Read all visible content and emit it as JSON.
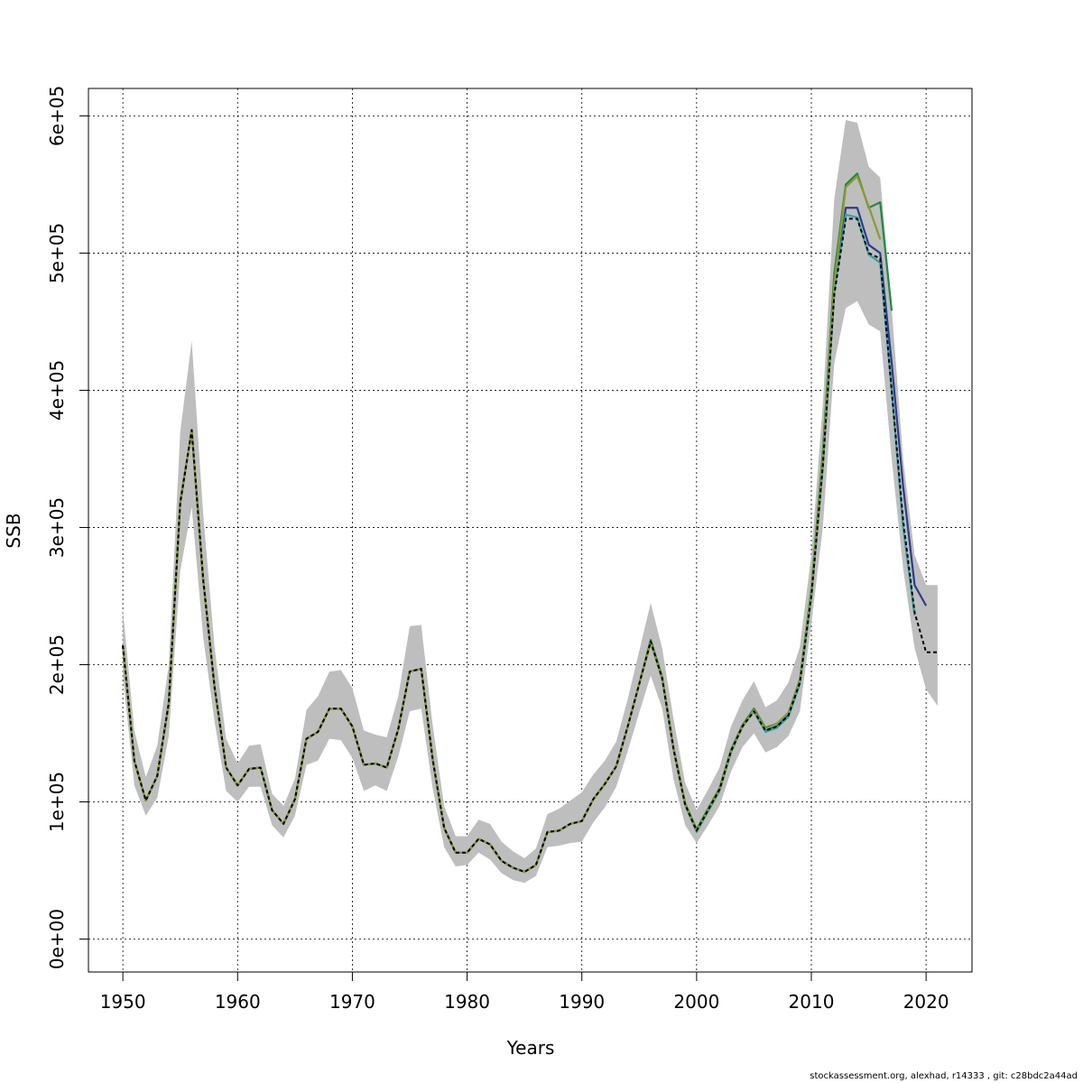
{
  "chart_data": {
    "type": "line",
    "title": "",
    "xlabel": "Years",
    "ylabel": "SSB",
    "xlim": [
      1947,
      2024
    ],
    "ylim": [
      -24000,
      620000
    ],
    "x_ticks": [
      1950,
      1960,
      1970,
      1980,
      1990,
      2000,
      2010,
      2020
    ],
    "x_tick_labels": [
      "1950",
      "1960",
      "1970",
      "1980",
      "1990",
      "2000",
      "2010",
      "2020"
    ],
    "y_ticks": [
      0,
      100000,
      200000,
      300000,
      400000,
      500000,
      600000
    ],
    "y_tick_labels": [
      "0e+00",
      "1e+05",
      "2e+05",
      "3e+05",
      "4e+05",
      "5e+05",
      "6e+05"
    ],
    "grid": true,
    "band": {
      "color": "#bebebe",
      "x": [
        1950,
        1951,
        1952,
        1953,
        1954,
        1955,
        1956,
        1957,
        1958,
        1959,
        1960,
        1961,
        1962,
        1963,
        1964,
        1965,
        1966,
        1967,
        1968,
        1969,
        1970,
        1971,
        1972,
        1973,
        1974,
        1975,
        1976,
        1977,
        1978,
        1979,
        1980,
        1981,
        1982,
        1983,
        1984,
        1985,
        1986,
        1987,
        1988,
        1989,
        1990,
        1991,
        1992,
        1993,
        1994,
        1995,
        1996,
        1997,
        1998,
        1999,
        2000,
        2001,
        2002,
        2003,
        2004,
        2005,
        2006,
        2007,
        2008,
        2009,
        2010,
        2011,
        2012,
        2013,
        2014,
        2015,
        2016,
        2017,
        2018,
        2019,
        2020,
        2021
      ],
      "lower": [
        192000,
        112000,
        90000,
        103000,
        148000,
        268000,
        315000,
        220000,
        158000,
        108000,
        100000,
        111000,
        111000,
        83000,
        74000,
        90000,
        127000,
        130000,
        146000,
        145000,
        132000,
        108000,
        112000,
        108000,
        133000,
        166000,
        168000,
        110000,
        67000,
        53000,
        54000,
        63000,
        58000,
        48000,
        43000,
        41000,
        46000,
        67000,
        68000,
        70000,
        71000,
        85000,
        96000,
        111000,
        137000,
        165000,
        192000,
        168000,
        116000,
        83000,
        70000,
        83000,
        97000,
        122000,
        140000,
        150000,
        136000,
        140000,
        148000,
        166000,
        230000,
        300000,
        420000,
        460000,
        465000,
        448000,
        443000,
        350000,
        270000,
        212000,
        182000,
        170000
      ],
      "upper": [
        240000,
        152000,
        118000,
        141000,
        200000,
        370000,
        436000,
        310000,
        212000,
        146000,
        128000,
        141000,
        142000,
        106000,
        97000,
        117000,
        167000,
        177000,
        195000,
        196000,
        183000,
        152000,
        149000,
        147000,
        177000,
        228000,
        229000,
        156000,
        97000,
        75000,
        75000,
        87000,
        84000,
        71000,
        64000,
        59000,
        66000,
        91000,
        95000,
        101000,
        107000,
        120000,
        130000,
        144000,
        175000,
        210000,
        245000,
        212000,
        160000,
        114000,
        94000,
        109000,
        125000,
        155000,
        174000,
        188000,
        169000,
        174000,
        187000,
        213000,
        280000,
        390000,
        540000,
        597000,
        595000,
        563000,
        555000,
        460000,
        350000,
        280000,
        258000,
        258000
      ]
    },
    "series": [
      {
        "color": "#000000",
        "dashed": true,
        "x": [
          1950,
          1951,
          1952,
          1953,
          1954,
          1955,
          1956,
          1957,
          1958,
          1959,
          1960,
          1961,
          1962,
          1963,
          1964,
          1965,
          1966,
          1967,
          1968,
          1969,
          1970,
          1971,
          1972,
          1973,
          1974,
          1975,
          1976,
          1977,
          1978,
          1979,
          1980,
          1981,
          1982,
          1983,
          1984,
          1985,
          1986,
          1987,
          1988,
          1989,
          1990,
          1991,
          1992,
          1993,
          1994,
          1995,
          1996,
          1997,
          1998,
          1999,
          2000,
          2001,
          2002,
          2003,
          2004,
          2005,
          2006,
          2007,
          2008,
          2009,
          2010,
          2011,
          2012,
          2013,
          2014,
          2015,
          2016,
          2017,
          2018,
          2019,
          2020,
          2021
        ],
        "values": [
          214000,
          130000,
          101000,
          119000,
          172000,
          318000,
          371000,
          262000,
          183000,
          125000,
          112000,
          124000,
          125000,
          94000,
          84000,
          102000,
          146000,
          151000,
          168000,
          168000,
          155000,
          127000,
          128000,
          125000,
          153000,
          195000,
          197000,
          131000,
          81000,
          63000,
          63000,
          73000,
          69000,
          57000,
          52000,
          49000,
          54000,
          78000,
          79000,
          84000,
          86000,
          102000,
          113000,
          126000,
          155000,
          186000,
          217000,
          190000,
          138000,
          98000,
          79000,
          94000,
          109000,
          137000,
          155000,
          166000,
          152000,
          155000,
          163000,
          187000,
          250000,
          345000,
          470000,
          525000,
          525000,
          500000,
          496000,
          400000,
          305000,
          238000,
          209000,
          209000
        ]
      },
      {
        "color": "#2b3d8c",
        "dashed": false,
        "x": [
          1950,
          1951,
          1952,
          1953,
          1954,
          1955,
          1956,
          1957,
          1958,
          1959,
          1960,
          1961,
          1962,
          1963,
          1964,
          1965,
          1966,
          1967,
          1968,
          1969,
          1970,
          1971,
          1972,
          1973,
          1974,
          1975,
          1976,
          1977,
          1978,
          1979,
          1980,
          1981,
          1982,
          1983,
          1984,
          1985,
          1986,
          1987,
          1988,
          1989,
          1990,
          1991,
          1992,
          1993,
          1994,
          1995,
          1996,
          1997,
          1998,
          1999,
          2000,
          2001,
          2002,
          2003,
          2004,
          2005,
          2006,
          2007,
          2008,
          2009,
          2010,
          2011,
          2012,
          2013,
          2014,
          2015,
          2016,
          2017,
          2018,
          2019,
          2020
        ],
        "values": [
          214000,
          130000,
          101000,
          119000,
          172000,
          318000,
          371000,
          262000,
          183000,
          125000,
          112000,
          124000,
          125000,
          94000,
          84000,
          102000,
          146000,
          151000,
          168000,
          168000,
          155000,
          127000,
          128000,
          125000,
          153000,
          195000,
          197000,
          131000,
          81000,
          63000,
          63000,
          73000,
          69000,
          57000,
          52000,
          49000,
          54000,
          78000,
          79000,
          84000,
          86000,
          102000,
          113000,
          126000,
          155000,
          186000,
          217000,
          190000,
          138000,
          98000,
          79000,
          94000,
          109000,
          137000,
          155000,
          166000,
          152000,
          155000,
          163000,
          187000,
          250000,
          345000,
          472000,
          533000,
          533000,
          506000,
          500000,
          420000,
          330000,
          258000,
          243000
        ]
      },
      {
        "color": "#2aa6a6",
        "dashed": false,
        "x": [
          1950,
          1951,
          1952,
          1953,
          1954,
          1955,
          1956,
          1957,
          1958,
          1959,
          1960,
          1961,
          1962,
          1963,
          1964,
          1965,
          1966,
          1967,
          1968,
          1969,
          1970,
          1971,
          1972,
          1973,
          1974,
          1975,
          1976,
          1977,
          1978,
          1979,
          1980,
          1981,
          1982,
          1983,
          1984,
          1985,
          1986,
          1987,
          1988,
          1989,
          1990,
          1991,
          1992,
          1993,
          1994,
          1995,
          1996,
          1997,
          1998,
          1999,
          2000,
          2001,
          2002,
          2003,
          2004,
          2005,
          2006,
          2007,
          2008,
          2009,
          2010,
          2011,
          2012,
          2013,
          2014,
          2015,
          2016,
          2017,
          2018,
          2019
        ],
        "values": [
          214000,
          130000,
          101000,
          119000,
          172000,
          318000,
          371000,
          262000,
          183000,
          125000,
          112000,
          124000,
          125000,
          94000,
          84000,
          102000,
          146000,
          151000,
          168000,
          168000,
          155000,
          127000,
          128000,
          125000,
          153000,
          195000,
          197000,
          131000,
          81000,
          63000,
          63000,
          73000,
          69000,
          57000,
          52000,
          49000,
          54000,
          78000,
          79000,
          84000,
          86000,
          102000,
          113000,
          126000,
          155000,
          186000,
          216000,
          190000,
          138000,
          98000,
          78000,
          93000,
          108000,
          136000,
          155000,
          166000,
          151000,
          154000,
          162000,
          186000,
          250000,
          345000,
          472000,
          528000,
          526000,
          499000,
          493000,
          400000,
          300000,
          236000
        ]
      },
      {
        "color": "#1e8c3c",
        "dashed": false,
        "x": [
          1950,
          1951,
          1952,
          1953,
          1954,
          1955,
          1956,
          1957,
          1958,
          1959,
          1960,
          1961,
          1962,
          1963,
          1964,
          1965,
          1966,
          1967,
          1968,
          1969,
          1970,
          1971,
          1972,
          1973,
          1974,
          1975,
          1976,
          1977,
          1978,
          1979,
          1980,
          1981,
          1982,
          1983,
          1984,
          1985,
          1986,
          1987,
          1988,
          1989,
          1990,
          1991,
          1992,
          1993,
          1994,
          1995,
          1996,
          1997,
          1998,
          1999,
          2000,
          2001,
          2002,
          2003,
          2004,
          2005,
          2006,
          2007,
          2008,
          2009,
          2010,
          2011,
          2012,
          2013,
          2014,
          2015,
          2016,
          2017
        ],
        "values": [
          214000,
          130000,
          101000,
          119000,
          172000,
          318000,
          371000,
          262000,
          183000,
          125000,
          112000,
          124000,
          125000,
          94000,
          84000,
          102000,
          146000,
          151000,
          168000,
          168000,
          155000,
          127000,
          128000,
          125000,
          153000,
          195000,
          197000,
          131000,
          81000,
          63000,
          63000,
          73000,
          69000,
          57000,
          52000,
          49000,
          54000,
          78000,
          79000,
          84000,
          86000,
          102000,
          113000,
          126000,
          155000,
          186000,
          218000,
          191000,
          139000,
          99000,
          80000,
          95000,
          110000,
          138000,
          156000,
          168000,
          154000,
          157000,
          165000,
          189000,
          255000,
          355000,
          485000,
          550000,
          558000,
          533000,
          537000,
          458000
        ]
      },
      {
        "color": "#8f9a2e",
        "dashed": false,
        "x": [
          1950,
          1951,
          1952,
          1953,
          1954,
          1955,
          1956,
          1957,
          1958,
          1959,
          1960,
          1961,
          1962,
          1963,
          1964,
          1965,
          1966,
          1967,
          1968,
          1969,
          1970,
          1971,
          1972,
          1973,
          1974,
          1975,
          1976,
          1977,
          1978,
          1979,
          1980,
          1981,
          1982,
          1983,
          1984,
          1985,
          1986,
          1987,
          1988,
          1989,
          1990,
          1991,
          1992,
          1993,
          1994,
          1995,
          1996,
          1997,
          1998,
          1999,
          2000,
          2001,
          2002,
          2003,
          2004,
          2005,
          2006,
          2007,
          2008,
          2009,
          2010,
          2011,
          2012,
          2013,
          2014,
          2015,
          2016
        ],
        "values": [
          214000,
          130000,
          101000,
          119000,
          172000,
          318000,
          371000,
          262000,
          183000,
          125000,
          112000,
          124000,
          125000,
          94000,
          84000,
          102000,
          146000,
          151000,
          168000,
          168000,
          155000,
          127000,
          128000,
          125000,
          153000,
          195000,
          197000,
          131000,
          81000,
          63000,
          63000,
          73000,
          69000,
          57000,
          52000,
          49000,
          54000,
          78000,
          79000,
          84000,
          86000,
          102000,
          113000,
          126000,
          155000,
          186000,
          216000,
          190000,
          138000,
          98000,
          79000,
          94000,
          109000,
          137000,
          155000,
          167000,
          153000,
          157000,
          165000,
          188000,
          253000,
          350000,
          478000,
          548000,
          556000,
          534000,
          510000
        ]
      }
    ]
  },
  "footer": {
    "text": "stockassessment.org, alexhad, r14333 , git: c28bdc2a44ad"
  }
}
